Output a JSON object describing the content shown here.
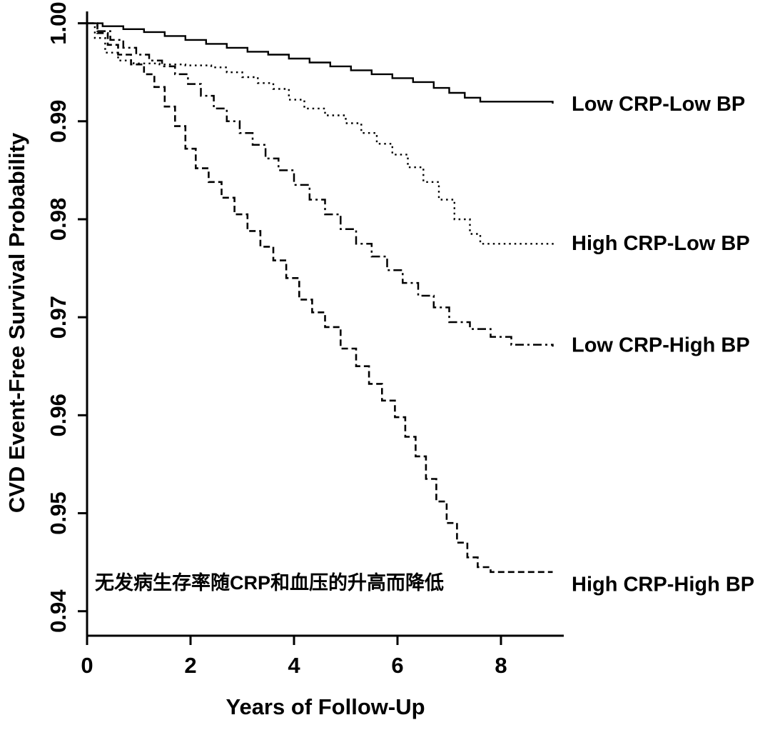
{
  "chart_data": {
    "type": "line",
    "subtype": "kaplan-meier-step",
    "title": "",
    "xlabel": "Years of Follow-Up",
    "ylabel": "CVD Event-Free Survival Probability",
    "xlim": [
      0,
      9.2
    ],
    "ylim": [
      0.9375,
      1.0015
    ],
    "x_ticks": [
      0,
      2,
      4,
      6,
      8
    ],
    "x_tick_labels": [
      "0",
      "2",
      "4",
      "6",
      "8"
    ],
    "y_ticks": [
      0.94,
      0.95,
      0.96,
      0.97,
      0.98,
      0.99,
      1.0
    ],
    "y_tick_labels": [
      "0.94",
      "0.95",
      "0.96",
      "0.97",
      "0.98",
      "0.99",
      "1.00"
    ],
    "grid": false,
    "legend_position": "labels-at-right-of-curve-ends",
    "line_color": "#000000",
    "annotation": {
      "text": "无发病生存率随CRP和血压的升高而降低",
      "color": "#e8001c",
      "x": 0.15,
      "y": 0.9425
    },
    "series": [
      {
        "id": "low-crp-low-bp",
        "name": "Low CRP-Low BP",
        "style": "solid",
        "label_y": 0.9918,
        "x": [
          0,
          0.3,
          0.7,
          1.1,
          1.5,
          1.9,
          2.3,
          2.7,
          3.1,
          3.5,
          3.9,
          4.3,
          4.7,
          5.1,
          5.5,
          5.9,
          6.3,
          6.7,
          7.0,
          7.3,
          7.6,
          9.0
        ],
        "y": [
          1.0,
          0.9997,
          0.9994,
          0.9991,
          0.9987,
          0.9983,
          0.9979,
          0.9975,
          0.9971,
          0.9968,
          0.9964,
          0.996,
          0.9956,
          0.9952,
          0.9948,
          0.9944,
          0.994,
          0.9934,
          0.9929,
          0.9924,
          0.992,
          0.9918
        ]
      },
      {
        "id": "high-crp-low-bp",
        "name": "High CRP-Low BP",
        "style": "dotted",
        "label_y": 0.9776,
        "x": [
          0,
          0.15,
          0.35,
          0.6,
          0.9,
          1.4,
          1.9,
          2.4,
          2.7,
          3.0,
          3.3,
          3.6,
          3.9,
          4.2,
          4.6,
          5.0,
          5.3,
          5.6,
          5.9,
          6.2,
          6.5,
          6.8,
          7.1,
          7.4,
          7.6,
          9.0
        ],
        "y": [
          1.0,
          0.9985,
          0.997,
          0.9962,
          0.9959,
          0.9958,
          0.9957,
          0.9955,
          0.995,
          0.9945,
          0.9939,
          0.9933,
          0.9922,
          0.9913,
          0.9906,
          0.9898,
          0.9888,
          0.9877,
          0.9866,
          0.9853,
          0.9838,
          0.982,
          0.98,
          0.9785,
          0.9775,
          0.9772
        ]
      },
      {
        "id": "low-crp-high-bp",
        "name": "Low CRP-High BP",
        "style": "dashdot",
        "label_y": 0.9672,
        "x": [
          0,
          0.2,
          0.45,
          0.7,
          0.95,
          1.2,
          1.45,
          1.7,
          1.95,
          2.2,
          2.45,
          2.7,
          2.95,
          3.2,
          3.45,
          3.7,
          4.0,
          4.3,
          4.6,
          4.9,
          5.2,
          5.5,
          5.8,
          6.1,
          6.4,
          6.7,
          7.0,
          7.4,
          7.8,
          8.2,
          9.0
        ],
        "y": [
          1.0,
          0.9992,
          0.9983,
          0.9975,
          0.9968,
          0.9962,
          0.9956,
          0.9948,
          0.9938,
          0.9926,
          0.9913,
          0.99,
          0.9888,
          0.9876,
          0.9862,
          0.985,
          0.9835,
          0.982,
          0.9805,
          0.979,
          0.9775,
          0.9762,
          0.9748,
          0.9735,
          0.9722,
          0.971,
          0.9695,
          0.9688,
          0.968,
          0.9672,
          0.967
        ]
      },
      {
        "id": "high-crp-high-bp",
        "name": "High CRP-High BP",
        "style": "dashed",
        "label_y": 0.9428,
        "x": [
          0,
          0.2,
          0.4,
          0.6,
          0.85,
          1.1,
          1.3,
          1.5,
          1.7,
          1.9,
          2.1,
          2.35,
          2.6,
          2.85,
          3.1,
          3.35,
          3.6,
          3.85,
          4.1,
          4.35,
          4.6,
          4.9,
          5.2,
          5.45,
          5.7,
          5.95,
          6.15,
          6.35,
          6.55,
          6.75,
          6.95,
          7.15,
          7.35,
          7.55,
          7.8,
          9.0
        ],
        "y": [
          1.0,
          0.999,
          0.9978,
          0.9968,
          0.9958,
          0.9948,
          0.9935,
          0.9915,
          0.9895,
          0.9872,
          0.9852,
          0.9838,
          0.9822,
          0.9805,
          0.9788,
          0.9772,
          0.9758,
          0.974,
          0.9718,
          0.9705,
          0.969,
          0.9668,
          0.965,
          0.9632,
          0.9615,
          0.9598,
          0.9578,
          0.9558,
          0.9535,
          0.9512,
          0.949,
          0.947,
          0.9455,
          0.9445,
          0.944,
          0.944
        ]
      }
    ]
  }
}
